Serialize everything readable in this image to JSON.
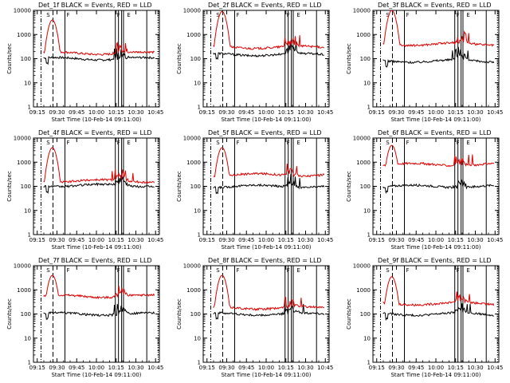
{
  "figure": {
    "description_title": "RHESSI detector count rates",
    "colors": {
      "events": "#000000",
      "lld": "#e00000",
      "axes": "#000000",
      "background": "#ffffff"
    }
  },
  "chart_data": [
    {
      "type": "line",
      "title": "Det_1f BLACK = Events, RED = LLD",
      "xlabel": "Start Time (10-Feb-14 09:11:00)",
      "ylabel": "Counts/sec",
      "x_ticks": [
        "09:15",
        "09:30",
        "09:45",
        "10:00",
        "10:15",
        "10:30",
        "10:45"
      ],
      "y_ticks": [
        "1",
        "10",
        "100",
        "1000",
        "10000"
      ],
      "ylim": [
        1,
        10000
      ],
      "yscale": "log",
      "xlim_minutes": [
        0,
        100
      ],
      "series": [
        {
          "name": "Events",
          "color": "#000000",
          "base": 100,
          "peak": null
        },
        {
          "name": "LLD",
          "color": "#e00000",
          "base": 170,
          "peak": 4000
        }
      ],
      "annotations": [
        "S",
        "F",
        "F",
        "E"
      ]
    },
    {
      "type": "line",
      "title": "Det_2f BLACK = Events, RED = LLD",
      "xlabel": "Start Time (10-Feb-14 09:11:00)",
      "ylabel": "Counts/sec",
      "x_ticks": [
        "09:15",
        "09:30",
        "09:45",
        "10:00",
        "10:15",
        "10:30",
        "10:45"
      ],
      "y_ticks": [
        "1",
        "10",
        "100",
        "1000",
        "10000"
      ],
      "ylim": [
        1,
        10000
      ],
      "yscale": "log",
      "xlim_minutes": [
        0,
        100
      ],
      "series": [
        {
          "name": "Events",
          "color": "#000000",
          "base": 150,
          "peak": null
        },
        {
          "name": "LLD",
          "color": "#e00000",
          "base": 300,
          "peak": 9000
        }
      ],
      "annotations": [
        "S",
        "F",
        "F",
        "E"
      ]
    },
    {
      "type": "line",
      "title": "Det_3f BLACK = Events, RED = LLD",
      "xlabel": "Start Time (10-Feb-14 09:11:00)",
      "ylabel": "Counts/sec",
      "x_ticks": [
        "09:15",
        "09:30",
        "09:45",
        "10:00",
        "10:15",
        "10:30",
        "10:45"
      ],
      "y_ticks": [
        "1",
        "10",
        "100",
        "1000",
        "10000"
      ],
      "ylim": [
        1,
        10000
      ],
      "yscale": "log",
      "xlim_minutes": [
        0,
        100
      ],
      "series": [
        {
          "name": "Events",
          "color": "#000000",
          "base": 80,
          "peak": null
        },
        {
          "name": "LLD",
          "color": "#e00000",
          "base": 400,
          "peak": 10000
        }
      ],
      "annotations": [
        "S",
        "F",
        "F",
        "E"
      ]
    },
    {
      "type": "line",
      "title": "Det_4f BLACK = Events, RED = LLD",
      "xlabel": "Start Time (10-Feb-14 09:11:00)",
      "ylabel": "Counts/sec",
      "x_ticks": [
        "09:15",
        "09:30",
        "09:45",
        "10:00",
        "10:15",
        "10:30",
        "10:45"
      ],
      "y_ticks": [
        "1",
        "10",
        "100",
        "1000",
        "10000"
      ],
      "ylim": [
        1,
        10000
      ],
      "yscale": "log",
      "xlim_minutes": [
        0,
        100
      ],
      "series": [
        {
          "name": "Events",
          "color": "#000000",
          "base": 110,
          "peak": null
        },
        {
          "name": "LLD",
          "color": "#e00000",
          "base": 170,
          "peak": 4000
        }
      ],
      "annotations": [
        "S",
        "F",
        "F",
        "E"
      ]
    },
    {
      "type": "line",
      "title": "Det_5f BLACK = Events, RED = LLD",
      "xlabel": "Start Time (10-Feb-14 09:11:00)",
      "ylabel": "Counts/sec",
      "x_ticks": [
        "09:15",
        "09:30",
        "09:45",
        "10:00",
        "10:15",
        "10:30",
        "10:45"
      ],
      "y_ticks": [
        "1",
        "10",
        "100",
        "1000",
        "10000"
      ],
      "ylim": [
        1,
        10000
      ],
      "yscale": "log",
      "xlim_minutes": [
        0,
        100
      ],
      "series": [
        {
          "name": "Events",
          "color": "#000000",
          "base": 100,
          "peak": null
        },
        {
          "name": "LLD",
          "color": "#e00000",
          "base": 300,
          "peak": 4000
        }
      ],
      "annotations": [
        "S",
        "F",
        "F",
        "E"
      ]
    },
    {
      "type": "line",
      "title": "Det_6f BLACK = Events, RED = LLD",
      "xlabel": "Start Time (10-Feb-14 09:11:00)",
      "ylabel": "Counts/sec",
      "x_ticks": [
        "09:15",
        "09:30",
        "09:45",
        "10:00",
        "10:15",
        "10:30",
        "10:45"
      ],
      "y_ticks": [
        "1",
        "10",
        "100",
        "1000",
        "10000"
      ],
      "ylim": [
        1,
        10000
      ],
      "yscale": "log",
      "xlim_minutes": [
        0,
        100
      ],
      "series": [
        {
          "name": "Events",
          "color": "#000000",
          "base": 100,
          "peak": null
        },
        {
          "name": "LLD",
          "color": "#e00000",
          "base": 800,
          "peak": 5000
        }
      ],
      "annotations": [
        "S",
        "F",
        "F",
        "E"
      ]
    },
    {
      "type": "line",
      "title": "Det_7f BLACK = Events, RED = LLD",
      "xlabel": "Start Time (10-Feb-14 09:11:00)",
      "ylabel": "Counts/sec",
      "x_ticks": [
        "09:15",
        "09:30",
        "09:45",
        "10:00",
        "10:15",
        "10:30",
        "10:45"
      ],
      "y_ticks": [
        "1",
        "10",
        "100",
        "1000",
        "10000"
      ],
      "ylim": [
        1,
        10000
      ],
      "yscale": "log",
      "xlim_minutes": [
        0,
        100
      ],
      "series": [
        {
          "name": "Events",
          "color": "#000000",
          "base": 100,
          "peak": null
        },
        {
          "name": "LLD",
          "color": "#e00000",
          "base": 550,
          "peak": 4000
        }
      ],
      "annotations": [
        "S",
        "F",
        "F",
        "E"
      ]
    },
    {
      "type": "line",
      "title": "Det_8f BLACK = Events, RED = LLD",
      "xlabel": "Start Time (10-Feb-14 09:11:00)",
      "ylabel": "Counts/sec",
      "x_ticks": [
        "09:15",
        "09:30",
        "09:45",
        "10:00",
        "10:15",
        "10:30",
        "10:45"
      ],
      "y_ticks": [
        "1",
        "10",
        "100",
        "1000",
        "10000"
      ],
      "ylim": [
        1,
        10000
      ],
      "yscale": "log",
      "xlim_minutes": [
        0,
        100
      ],
      "series": [
        {
          "name": "Events",
          "color": "#000000",
          "base": 100,
          "peak": null
        },
        {
          "name": "LLD",
          "color": "#e00000",
          "base": 180,
          "peak": 4000
        }
      ],
      "annotations": [
        "S",
        "F",
        "F",
        "E"
      ]
    },
    {
      "type": "line",
      "title": "Det_9f BLACK = Events, RED = LLD",
      "xlabel": "Start Time (10-Feb-14 09:11:00)",
      "ylabel": "Counts/sec",
      "x_ticks": [
        "09:15",
        "09:30",
        "09:45",
        "10:00",
        "10:15",
        "10:30",
        "10:45"
      ],
      "y_ticks": [
        "1",
        "10",
        "100",
        "1000",
        "10000"
      ],
      "ylim": [
        1,
        10000
      ],
      "yscale": "log",
      "xlim_minutes": [
        0,
        100
      ],
      "series": [
        {
          "name": "Events",
          "color": "#000000",
          "base": 100,
          "peak": null
        },
        {
          "name": "LLD",
          "color": "#e00000",
          "base": 270,
          "peak": 3500
        }
      ],
      "annotations": [
        "S",
        "F",
        "F",
        "E"
      ]
    }
  ]
}
